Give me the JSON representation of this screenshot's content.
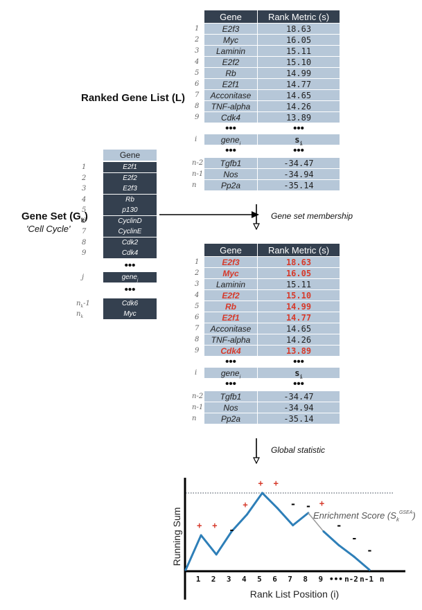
{
  "ranked_label": "Ranked Gene List (L)",
  "gene_set_label": "Gene Set (G",
  "gene_set_sub": "k",
  "gene_set_close": ")",
  "gene_set_name": "'Cell Cycle'",
  "header_gene": "Gene",
  "header_rank": "Rank Metric (s)",
  "arrow1_label": "Gene set membership",
  "arrow2_label": "Global statistic",
  "ranked_rows": [
    {
      "idx": "1",
      "gene": "E2f3",
      "val": "18.63"
    },
    {
      "idx": "2",
      "gene": "Myc",
      "val": "16.05"
    },
    {
      "idx": "3",
      "gene": "Laminin",
      "val": "15.11"
    },
    {
      "idx": "4",
      "gene": "E2f2",
      "val": "15.10"
    },
    {
      "idx": "5",
      "gene": "Rb",
      "val": "14.99"
    },
    {
      "idx": "6",
      "gene": "E2f1",
      "val": "14.77"
    },
    {
      "idx": "7",
      "gene": "Acconitase",
      "val": "14.65"
    },
    {
      "idx": "8",
      "gene": "TNF-alpha",
      "val": "14.26"
    },
    {
      "idx": "9",
      "gene": "Cdk4",
      "val": "13.89"
    }
  ],
  "ranked_i_row": {
    "idx": "i",
    "gene": "gene",
    "gene_sub": "i",
    "val": "s",
    "val_sub": "i"
  },
  "ranked_tail_rows": [
    {
      "idx": "n-2",
      "gene": "Tgfb1",
      "val": "-34.47"
    },
    {
      "idx": "n-1",
      "gene": "Nos",
      "val": "-34.94"
    },
    {
      "idx": "n",
      "gene": "Pp2a",
      "val": "-35.14"
    }
  ],
  "highlighted_genes": [
    "E2f3",
    "Myc",
    "E2f2",
    "Rb",
    "E2f1",
    "Cdk4"
  ],
  "dots": "•••",
  "gene_set_rows": [
    {
      "idx": "1",
      "gene": "E2f1"
    },
    {
      "idx": "2",
      "gene": "E2f2"
    },
    {
      "idx": "3",
      "gene": "E2f3"
    },
    {
      "idx": "4",
      "gene": "Rb"
    },
    {
      "idx": "5",
      "gene": "p130"
    },
    {
      "idx": "6",
      "gene": "CyclinD"
    },
    {
      "idx": "7",
      "gene": "CyclinE"
    },
    {
      "idx": "8",
      "gene": "Cdk2"
    },
    {
      "idx": "9",
      "gene": "Cdk4"
    }
  ],
  "gene_set_j_row": {
    "idx": "j",
    "gene": "gene",
    "gene_sub": "j"
  },
  "gene_set_tail_rows": [
    {
      "idx": "n",
      "idx_sub": "k",
      "idx_suffix": "-1",
      "gene": "Cdk6"
    },
    {
      "idx": "n",
      "idx_sub": "k",
      "idx_suffix": "",
      "gene": "Myc"
    }
  ],
  "chart_data": {
    "type": "line",
    "ylabel": "Running Sum",
    "xlabel": "Rank List Position (i)",
    "annotation": "Enrichment Score (S",
    "annotation_sub": "k",
    "annotation_sup": "GSEA",
    "annotation_close": ")",
    "x_tick_labels": [
      "1",
      "2",
      "3",
      "4",
      "5",
      "6",
      "7",
      "8",
      "9",
      "•••",
      "n-2",
      "n-1",
      "n"
    ],
    "positions": [
      0,
      1,
      2,
      3,
      4,
      5,
      6,
      7,
      8,
      9,
      10,
      11,
      12
    ],
    "running_sum": [
      0,
      0.45,
      0.2,
      0.5,
      0.72,
      1.0,
      0.8,
      0.58,
      0.74,
      0.5,
      0.32,
      0.17,
      0.0
    ],
    "steps": [
      {
        "x": 1,
        "mark": "+"
      },
      {
        "x": 2,
        "mark": "+"
      },
      {
        "x": 3,
        "mark": "-"
      },
      {
        "x": 4,
        "mark": "+"
      },
      {
        "x": 5,
        "mark": "+"
      },
      {
        "x": 6,
        "mark": "+"
      },
      {
        "x": 7,
        "mark": "-"
      },
      {
        "x": 8,
        "mark": "-"
      },
      {
        "x": 9,
        "mark": "+"
      },
      {
        "x": 10,
        "mark": "-"
      },
      {
        "x": 11,
        "mark": "-"
      },
      {
        "x": 12,
        "mark": "-"
      }
    ],
    "gap_segment": [
      8,
      9
    ],
    "line_color": "#2e7fb8",
    "gap_color": "#9a9a9a",
    "plus_color": "#d63a2b",
    "ref_line_color": "#34404f"
  }
}
